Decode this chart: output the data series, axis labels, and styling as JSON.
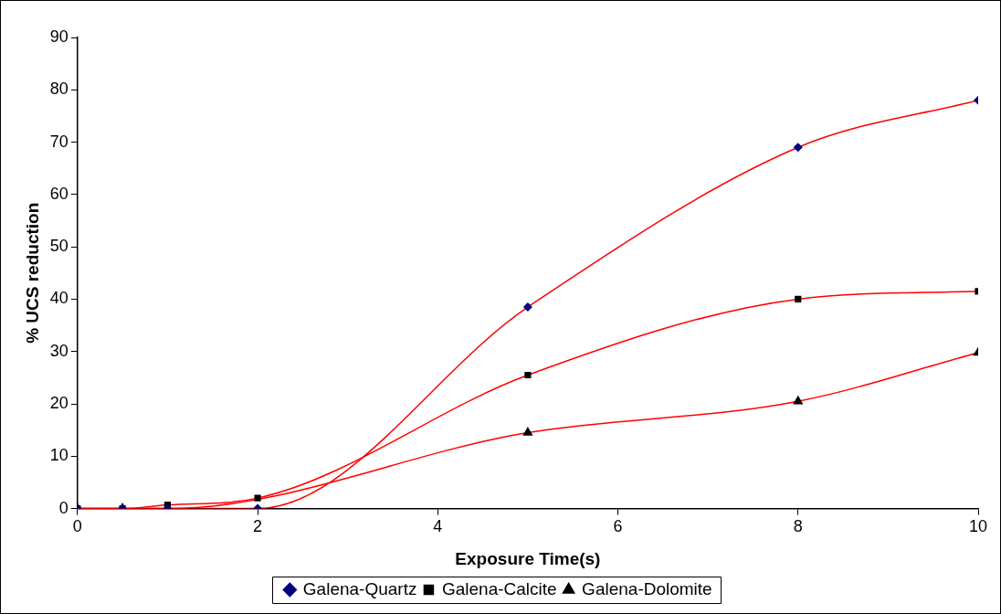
{
  "chart_data": {
    "type": "line",
    "xlabel": "Exposure Time(s)",
    "ylabel": "% UCS reduction",
    "x": [
      0,
      0.5,
      1,
      2,
      5,
      8,
      10
    ],
    "series": [
      {
        "name": "Galena-Quartz",
        "color": "#ff0000",
        "marker": "diamond",
        "values": [
          0,
          0,
          0,
          0,
          38.5,
          69,
          78
        ]
      },
      {
        "name": "Galena-Calcite",
        "color": "#ff0000",
        "marker": "square",
        "values": [
          0,
          0,
          0.7,
          2,
          25.5,
          40,
          41.5
        ]
      },
      {
        "name": "Galena-Dolomite",
        "color": "#ff0000",
        "marker": "triangle",
        "values": [
          0,
          0,
          0,
          null,
          14.5,
          20.5,
          29.8
        ]
      }
    ],
    "xlim": [
      0,
      10
    ],
    "xticks": [
      0,
      2,
      4,
      6,
      8,
      10
    ],
    "ylim": [
      0,
      90
    ],
    "yticks": [
      0,
      10,
      20,
      30,
      40,
      50,
      60,
      70,
      80,
      90
    ],
    "grid": false,
    "legend": "bottom",
    "line_style": "solid"
  }
}
